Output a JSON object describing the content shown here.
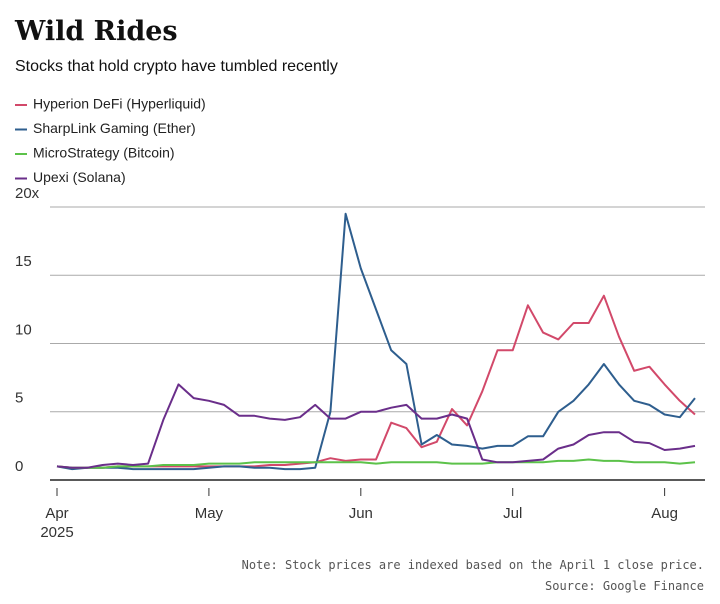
{
  "chart_data": {
    "type": "line",
    "title": "Wild Rides",
    "subtitle": "Stocks that hold crypto have tumbled recently",
    "categories": [
      "Apr",
      null,
      null,
      null,
      null,
      null,
      null,
      null,
      null,
      null,
      "May",
      null,
      null,
      null,
      null,
      null,
      null,
      null,
      null,
      null,
      "Jun",
      null,
      null,
      null,
      null,
      null,
      null,
      null,
      null,
      null,
      "Jul",
      null,
      null,
      null,
      null,
      null,
      null,
      null,
      null,
      null,
      "Aug",
      null,
      null
    ],
    "x_sublabel": "2025",
    "series": [
      {
        "name": "Hyperion DeFi (Hyperliquid)",
        "color": "#d2496a",
        "values": [
          1.0,
          0.9,
          0.9,
          0.9,
          1.0,
          1.0,
          1.0,
          1.0,
          1.0,
          1.0,
          1.0,
          1.0,
          1.0,
          1.0,
          1.1,
          1.1,
          1.2,
          1.3,
          1.6,
          1.4,
          1.5,
          1.5,
          4.2,
          3.8,
          2.4,
          2.8,
          5.2,
          4.0,
          6.5,
          9.5,
          9.5,
          12.8,
          10.8,
          10.3,
          11.5,
          11.5,
          13.5,
          10.5,
          8.0,
          8.3,
          7.0,
          5.8,
          4.8
        ]
      },
      {
        "name": "SharpLink Gaming (Ether)",
        "color": "#2e5e8e",
        "values": [
          1.0,
          0.8,
          0.9,
          0.9,
          0.9,
          0.8,
          0.8,
          0.8,
          0.8,
          0.8,
          0.9,
          1.0,
          1.0,
          0.9,
          0.9,
          0.8,
          0.8,
          0.9,
          5.0,
          19.5,
          15.5,
          12.5,
          9.5,
          8.5,
          2.6,
          3.3,
          2.6,
          2.5,
          2.3,
          2.5,
          2.5,
          3.2,
          3.2,
          5.0,
          5.8,
          7.0,
          8.5,
          7.0,
          5.8,
          5.5,
          4.8,
          4.6,
          6.0
        ]
      },
      {
        "name": "MicroStrategy (Bitcoin)",
        "color": "#5cc24a",
        "values": [
          1.0,
          0.9,
          0.9,
          0.9,
          1.0,
          1.0,
          1.0,
          1.1,
          1.1,
          1.1,
          1.2,
          1.2,
          1.2,
          1.3,
          1.3,
          1.3,
          1.3,
          1.3,
          1.3,
          1.3,
          1.3,
          1.2,
          1.3,
          1.3,
          1.3,
          1.3,
          1.2,
          1.2,
          1.2,
          1.3,
          1.3,
          1.3,
          1.3,
          1.4,
          1.4,
          1.5,
          1.4,
          1.4,
          1.3,
          1.3,
          1.3,
          1.2,
          1.3
        ]
      },
      {
        "name": "Upexi (Solana)",
        "color": "#6a2e8a",
        "values": [
          1.0,
          0.9,
          0.9,
          1.1,
          1.2,
          1.1,
          1.2,
          4.4,
          7.0,
          6.0,
          5.8,
          5.5,
          4.7,
          4.7,
          4.5,
          4.4,
          4.6,
          5.5,
          4.5,
          4.5,
          5.0,
          5.0,
          5.3,
          5.5,
          4.5,
          4.5,
          4.8,
          4.5,
          1.5,
          1.3,
          1.3,
          1.4,
          1.5,
          2.3,
          2.6,
          3.3,
          3.5,
          3.5,
          2.8,
          2.7,
          2.2,
          2.3,
          2.5
        ]
      }
    ],
    "ylim": [
      0,
      20
    ],
    "yticks": [
      0,
      5,
      10,
      15,
      {
        "value": 20,
        "label": "20x"
      }
    ],
    "grid": true,
    "note": "Note: Stock prices are indexed based on the April 1 close price.",
    "source": "Source: Google Finance"
  }
}
